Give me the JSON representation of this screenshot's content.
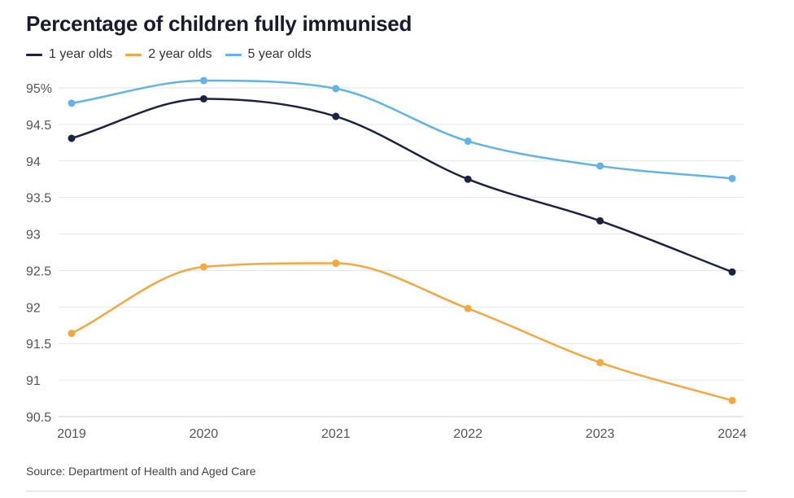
{
  "title": "Percentage of children fully immunised",
  "source": "Source: Department of Health and Aged Care",
  "chart_data": {
    "type": "line",
    "title": "Percentage of children fully immunised",
    "xlabel": "",
    "ylabel": "",
    "x": [
      "2019",
      "2020",
      "2021",
      "2022",
      "2023",
      "2024"
    ],
    "ylim": [
      90.5,
      95.5
    ],
    "yticks": [
      90.5,
      91,
      91.5,
      92,
      92.5,
      93,
      93.5,
      94,
      94.5,
      95
    ],
    "ytick_labels": [
      "90.5",
      "91",
      "91.5",
      "92",
      "92.5",
      "93",
      "93.5",
      "94",
      "94.5",
      "95%"
    ],
    "grid": "horizontal",
    "legend_position": "top-left",
    "series": [
      {
        "name": "1 year olds",
        "color": "#1b2341",
        "values": [
          94.31,
          94.85,
          94.61,
          93.75,
          93.18,
          92.48
        ]
      },
      {
        "name": "2 year olds",
        "color": "#f5a742",
        "values": [
          91.64,
          92.55,
          92.6,
          91.98,
          91.24,
          90.72
        ]
      },
      {
        "name": "5 year olds",
        "color": "#64b3e6",
        "values": [
          94.79,
          95.1,
          94.99,
          94.27,
          93.93,
          93.76
        ]
      }
    ]
  }
}
